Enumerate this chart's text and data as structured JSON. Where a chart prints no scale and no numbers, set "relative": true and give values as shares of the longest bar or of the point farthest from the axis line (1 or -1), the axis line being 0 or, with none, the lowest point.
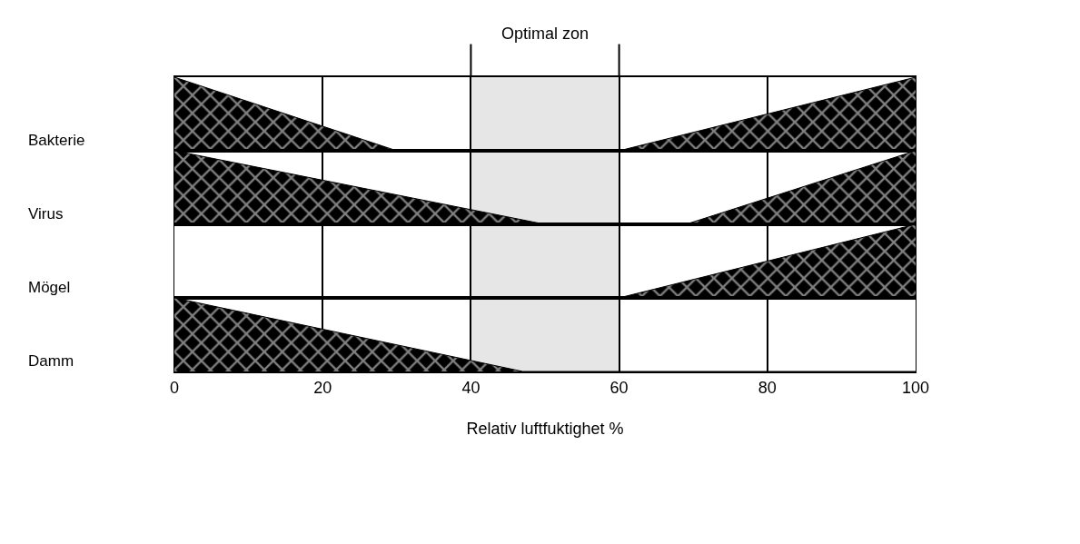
{
  "chart_data": [
    {
      "type": "area",
      "relative": true,
      "ylabel": "Bakterie",
      "xlim": [
        0,
        100
      ],
      "xticks": [
        0,
        20,
        40,
        60,
        80,
        100
      ],
      "grid": "x",
      "tick_labels": false,
      "bands": [
        {
          "axis": "x",
          "from": 40,
          "to": 60,
          "label": "Optimal zon",
          "color": "#e6e6e6"
        }
      ],
      "series": [
        {
          "color": "#000000",
          "x": [
            0,
            30,
            60,
            100
          ],
          "values": [
            1,
            0,
            0,
            1
          ]
        }
      ]
    },
    {
      "type": "area",
      "relative": true,
      "ylabel": "Virus",
      "xlim": [
        0,
        100
      ],
      "xticks": [
        0,
        20,
        40,
        60,
        80,
        100
      ],
      "grid": "x",
      "tick_labels": false,
      "bands": [
        {
          "axis": "x",
          "from": 40,
          "to": 60,
          "color": "#e6e6e6"
        }
      ],
      "series": [
        {
          "color": "#000000",
          "x": [
            0,
            50,
            69,
            100
          ],
          "values": [
            1,
            0,
            0,
            1
          ]
        }
      ]
    },
    {
      "type": "area",
      "relative": true,
      "ylabel": "Mögel",
      "xlim": [
        0,
        100
      ],
      "xticks": [
        0,
        20,
        40,
        60,
        80,
        100
      ],
      "grid": "x",
      "tick_labels": false,
      "bands": [
        {
          "axis": "x",
          "from": 40,
          "to": 60,
          "color": "#e6e6e6"
        }
      ],
      "series": [
        {
          "color": "#000000",
          "x": [
            0,
            60,
            100
          ],
          "values": [
            0,
            0,
            1
          ]
        }
      ]
    },
    {
      "type": "area",
      "relative": true,
      "ylabel": "Damm",
      "xlabel": "Relativ luftfuktighet %",
      "xlim": [
        0,
        100
      ],
      "xticks": [
        0,
        20,
        40,
        60,
        80,
        100
      ],
      "grid": "x",
      "tick_labels": "x",
      "bands": [
        {
          "axis": "x",
          "from": 40,
          "to": 60,
          "color": "#e6e6e6"
        }
      ],
      "series": [
        {
          "color": "#000000",
          "x": [
            0,
            47,
            100
          ],
          "values": [
            1,
            0,
            0
          ]
        }
      ]
    }
  ]
}
